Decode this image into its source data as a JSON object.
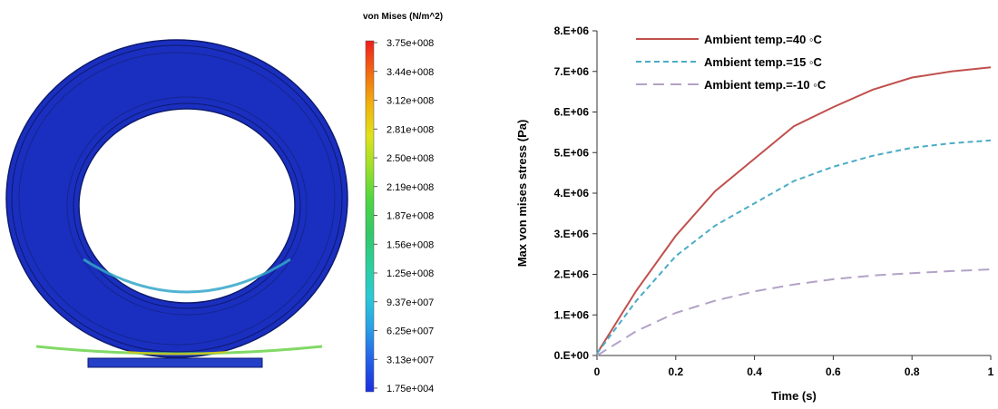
{
  "fea": {
    "legend_title": "von Mises (N/m^2)",
    "legend_ticks": [
      "3.75e+008",
      "3.44e+008",
      "3.12e+008",
      "2.81e+008",
      "2.50e+008",
      "2.19e+008",
      "1.87e+008",
      "1.56e+008",
      "1.25e+008",
      "9.37e+007",
      "6.25e+007",
      "3.13e+007",
      "1.75e+004"
    ],
    "colors": {
      "ring": "#1a2fbf",
      "ring_edge": "#0e1a6e",
      "base": "#2440c8",
      "scale": [
        "#ee1e1e",
        "#f26a12",
        "#f2b10f",
        "#dfe21a",
        "#9de02c",
        "#4fd640",
        "#33c86a",
        "#2bcf9b",
        "#2cc9d6",
        "#2a9fe6",
        "#2460e8",
        "#1b2ee0"
      ]
    }
  },
  "chart_data": {
    "type": "line",
    "x": [
      0,
      0.1,
      0.2,
      0.3,
      0.4,
      0.5,
      0.6,
      0.7,
      0.8,
      0.9,
      1.0
    ],
    "series": [
      {
        "name": "Ambient temp.=40 ◦C",
        "color": "#c0504d",
        "dash": "",
        "values": [
          50000.0,
          1600000.0,
          2950000.0,
          4050000.0,
          4850000.0,
          5650000.0,
          6120000.0,
          6550000.0,
          6850000.0,
          7000000.0,
          7100000.0
        ]
      },
      {
        "name": "Ambient temp.=15 ◦C",
        "color": "#4bacc6",
        "dash": "6,4",
        "values": [
          50000.0,
          1350000.0,
          2450000.0,
          3200000.0,
          3750000.0,
          4300000.0,
          4650000.0,
          4920000.0,
          5120000.0,
          5230000.0,
          5300000.0
        ]
      },
      {
        "name": "Ambient temp.=-10 ◦C",
        "color": "#b3a2c7",
        "dash": "12,7",
        "values": [
          0.0,
          600000.0,
          1050000.0,
          1350000.0,
          1580000.0,
          1750000.0,
          1880000.0,
          1970000.0,
          2030000.0,
          2080000.0,
          2120000.0
        ]
      }
    ],
    "xlabel": "Time (s)",
    "ylabel": "Max von mises stress (Pa)",
    "xlim": [
      0,
      1
    ],
    "ylim": [
      0,
      8000000
    ],
    "xticks": [
      0,
      0.2,
      0.4,
      0.6,
      0.8,
      1
    ],
    "xtick_labels": [
      "0",
      "0.2",
      "0.4",
      "0.6",
      "0.8",
      "1"
    ],
    "yticks": [
      0,
      1000000,
      2000000,
      3000000,
      4000000,
      5000000,
      6000000,
      7000000,
      8000000
    ],
    "ytick_labels": [
      "0.E+00",
      "1.E+06",
      "2.E+06",
      "3.E+06",
      "4.E+06",
      "5.E+06",
      "6.E+06",
      "7.E+06",
      "8.E+06"
    ],
    "grid": false,
    "legend_position": "top-right"
  }
}
